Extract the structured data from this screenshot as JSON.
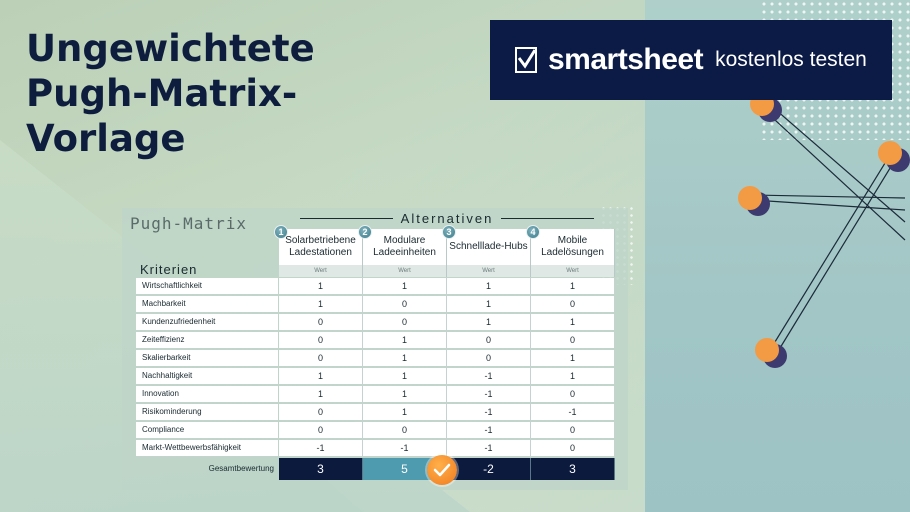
{
  "title": "Ungewichtete Pugh-Matrix-Vorlage",
  "cta": {
    "brand": "smartsheet",
    "text": "kostenlos testen"
  },
  "matrix": {
    "title": "Pugh-Matrix",
    "criteria_label": "Kriterien",
    "alternatives_heading": "Alternativen",
    "alternatives": [
      {
        "number": "1",
        "name": "Solarbetriebene Ladestationen",
        "sub": "Wert"
      },
      {
        "number": "2",
        "name": "Modulare Ladeeinheiten",
        "sub": "Wert"
      },
      {
        "number": "3",
        "name": "Schnelllade-Hubs",
        "sub": "Wert"
      },
      {
        "number": "4",
        "name": "Mobile Ladelösungen",
        "sub": "Wert"
      }
    ],
    "rows": [
      {
        "label": "Wirtschaftlichkeit",
        "values": [
          "1",
          "1",
          "1",
          "1"
        ]
      },
      {
        "label": "Machbarkeit",
        "values": [
          "1",
          "0",
          "1",
          "0"
        ]
      },
      {
        "label": "Kundenzufriedenheit",
        "values": [
          "0",
          "0",
          "1",
          "1"
        ]
      },
      {
        "label": "Zeiteffizienz",
        "values": [
          "0",
          "1",
          "0",
          "0"
        ]
      },
      {
        "label": "Skalierbarkeit",
        "values": [
          "0",
          "1",
          "0",
          "1"
        ]
      },
      {
        "label": "Nachhaltigkeit",
        "values": [
          "1",
          "1",
          "-1",
          "1"
        ]
      },
      {
        "label": "Innovation",
        "values": [
          "1",
          "1",
          "-1",
          "0"
        ]
      },
      {
        "label": "Risikominderung",
        "values": [
          "0",
          "1",
          "-1",
          "-1"
        ]
      },
      {
        "label": "Compliance",
        "values": [
          "0",
          "0",
          "-1",
          "0"
        ]
      },
      {
        "label": "Markt-Wettbewerbsfähigkeit",
        "values": [
          "-1",
          "-1",
          "-1",
          "0"
        ]
      }
    ],
    "total_label": "Gesamtbewertung",
    "totals": [
      "3",
      "5",
      "-2",
      "3"
    ],
    "winner_index": 1
  },
  "icons": {
    "logo": "smartsheet-logo-icon",
    "check": "checkmark-icon"
  },
  "colors": {
    "navy": "#0c1a46",
    "accent": "#4e9bb0",
    "orange": "#f07a1e"
  }
}
